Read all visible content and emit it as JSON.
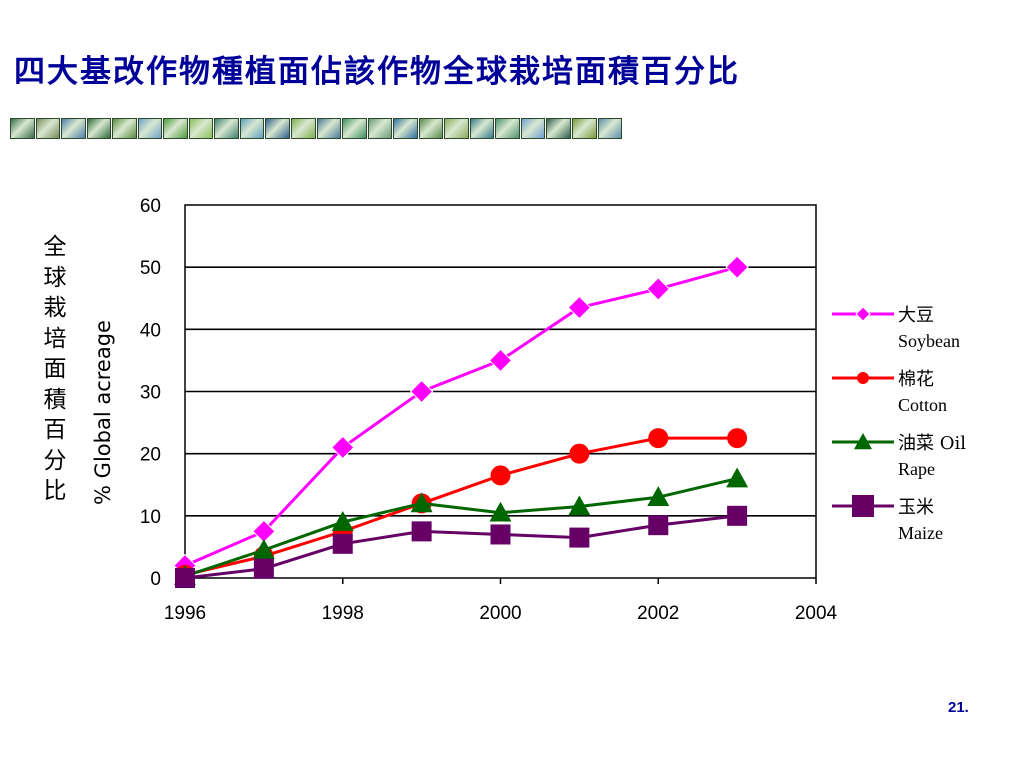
{
  "slide": {
    "title": "四大基改作物種植面佔該作物全球栽培面積百分比",
    "side_label": "全球栽培面積百分比",
    "page_number": "21.",
    "title_color": "#000099"
  },
  "banner": {
    "tile_colors": [
      "#3a6b4a",
      "#7a8a5a",
      "#4f7fa8",
      "#2f6b3a",
      "#5b8c3e",
      "#6fa0c8",
      "#4e9a3a",
      "#8cbf5a",
      "#3f7f6f",
      "#5f9fbf",
      "#2f5f8f",
      "#7fae4f",
      "#4a7a9a",
      "#3f8f5f",
      "#6a9a7a",
      "#2f6f9f",
      "#5a8a4a",
      "#8aaa5a",
      "#3a7a8a",
      "#4f8f6f",
      "#6f9fcf",
      "#2f5f4f",
      "#7a9a3a",
      "#5f8faf"
    ]
  },
  "chart_data": {
    "type": "line",
    "title": "",
    "xlabel": "",
    "ylabel": "% Global acreage",
    "xlim": [
      1996,
      2004
    ],
    "ylim": [
      0,
      60
    ],
    "x_ticks": [
      "1996",
      "1998",
      "2000",
      "2002",
      "2004"
    ],
    "y_ticks": [
      "0",
      "10",
      "20",
      "30",
      "40",
      "50",
      "60"
    ],
    "grid": "horizontal",
    "legend_position": "right",
    "series": [
      {
        "name": "大豆",
        "name_en": "Soybean",
        "color": "#ff00ff",
        "marker": "diamond",
        "x": [
          1996,
          1997,
          1998,
          1999,
          2000,
          2001,
          2002,
          2003
        ],
        "y": [
          2,
          7.5,
          21,
          30,
          35,
          43.5,
          46.5,
          50
        ]
      },
      {
        "name": "棉花",
        "name_en": "Cotton",
        "color": "#ff0000",
        "marker": "circle",
        "x": [
          1996,
          1997,
          1998,
          1999,
          2000,
          2001,
          2002,
          2003
        ],
        "y": [
          0.5,
          3.5,
          7.5,
          12,
          16.5,
          20,
          22.5,
          22.5
        ]
      },
      {
        "name": "油菜 Oil",
        "name_en": "Rape",
        "color": "#006600",
        "marker": "triangle",
        "x": [
          1996,
          1997,
          1998,
          1999,
          2000,
          2001,
          2002,
          2003
        ],
        "y": [
          0.3,
          4.5,
          9,
          12,
          10.5,
          11.5,
          13,
          16
        ]
      },
      {
        "name": "玉米",
        "name_en": "Maize",
        "color": "#660066",
        "marker": "square",
        "x": [
          1996,
          1997,
          1998,
          1999,
          2000,
          2001,
          2002,
          2003
        ],
        "y": [
          0,
          1.5,
          5.5,
          7.5,
          7,
          6.5,
          8.5,
          10
        ]
      }
    ]
  }
}
